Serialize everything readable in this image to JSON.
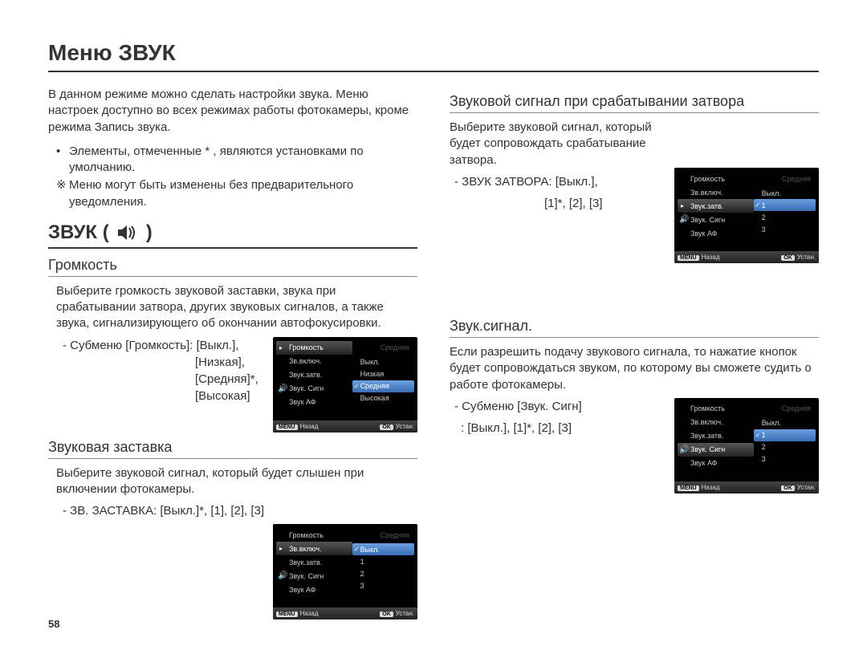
{
  "page_title": "Меню ЗВУК",
  "page_number": "58",
  "intro_text": "В данном режиме можно сделать настройки звука. Меню настроек доступно во всех режимах работы фотокамеры, кроме режима Запись звука.",
  "bullet1_mark": "•",
  "bullet1_text": "Элементы, отмеченные * , являются установками по умолчанию.",
  "bullet2_mark": "※",
  "bullet2_text": "Меню могут быть изменены без предварительного уведомления.",
  "sound_heading_prefix": "ЗВУК (",
  "sound_heading_suffix": ")",
  "sub_volume": "Громкость",
  "volume_text": "Выберите громкость звуковой заставки, звука при срабатывании затвора, других звуковых сигналов, а также звука, сигнализирующего об окончании автофокусировки.",
  "volume_setting": "- Субменю [Громкость]: [Выкл.],",
  "volume_opts_1": "[Низкая],",
  "volume_opts_2": "[Средняя]*,",
  "volume_opts_3": "[Высокая]",
  "sub_startup": "Звуковая заставка",
  "startup_text": "Выберите звуковой сигнал, который будет слышен при включении фотокамеры.",
  "startup_setting": "- ЗВ. ЗАСТАВКА: [Выкл.]*, [1], [2], [3]",
  "sub_shutter": "Звуковой сигнал при срабатывании затвора",
  "shutter_text": "Выберите звуковой сигнал, который будет сопровождать срабатывание затвора.",
  "shutter_setting1": "- ЗВУК ЗАТВОРА: [Выкл.],",
  "shutter_setting2": "[1]*, [2], [3]",
  "sub_beep": "Звук.сигнал.",
  "beep_text": "Если разрешить подачу звукового сигнала, то нажатие кнопок будет сопровождаться звуком, по которому вы сможете судить о работе фотокамеры.",
  "beep_setting1": "- Субменю [Звук. Сигн]",
  "beep_setting2": ": [Выкл.], [1]*, [2], [3]",
  "mini": {
    "left_items": [
      "Громкость",
      "Зв.включ.",
      "Звук.затв.",
      "Звук. Сигн",
      "Звук АФ"
    ],
    "mid_dim": "Средняя",
    "vol_options": [
      "Выкл.",
      "Низкая",
      "Средняя",
      "Высокая"
    ],
    "vol_selected_index": 2,
    "startup_options": [
      "Выкл.",
      "1",
      "2",
      "3"
    ],
    "startup_selected_index": 0,
    "shutter_options": [
      "Выкл.",
      "1",
      "2",
      "3"
    ],
    "shutter_selected_index": 1,
    "beep_options": [
      "Выкл.",
      "1",
      "2",
      "3"
    ],
    "beep_selected_index": 1,
    "foot_back_btn": "MENU",
    "foot_back_lbl": "Назад",
    "foot_ok_btn": "OK",
    "foot_ok_lbl": "Устан."
  },
  "colors": {
    "text": "#333333",
    "rule": "#333333",
    "subrule": "#888888",
    "mini_bg": "#000000",
    "mini_sel": "#3a6db5"
  }
}
